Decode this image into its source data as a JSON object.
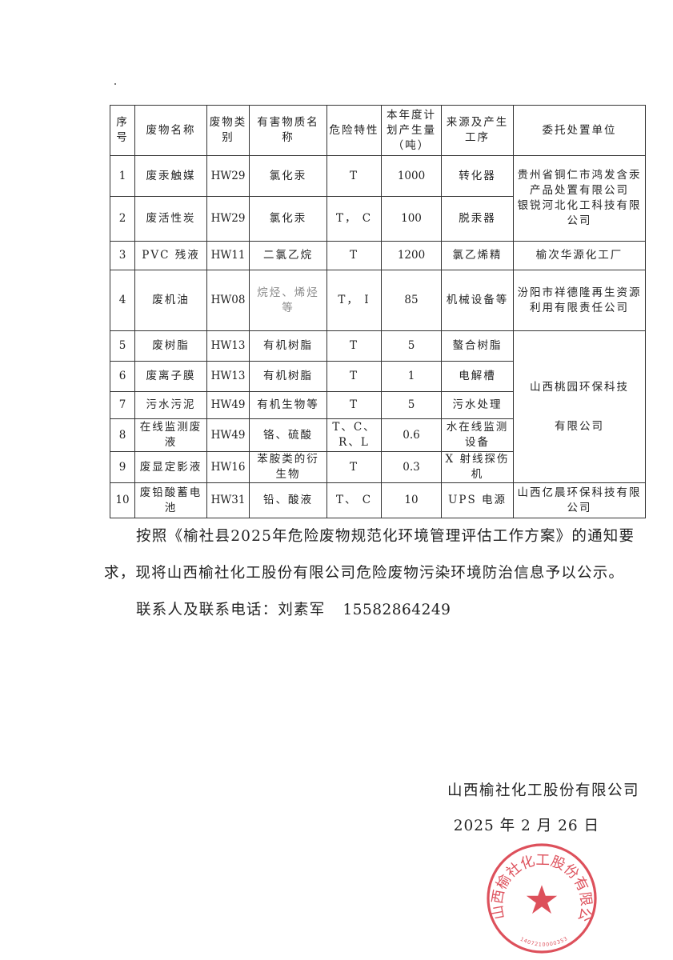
{
  "table": {
    "headers": [
      "序号",
      "废物名称",
      "废物类别",
      "有害物质名称",
      "危险特性",
      "本年度计划产生量（吨）",
      "来源及产生工序",
      "委托处置单位"
    ],
    "rows": [
      {
        "no": "1",
        "name": "废汞触媒",
        "category": "HW29",
        "substance": "氯化汞",
        "hazard": "T",
        "amount": "1000",
        "source": "转化器"
      },
      {
        "no": "2",
        "name": "废活性炭",
        "category": "HW29",
        "substance": "氯化汞",
        "hazard": "T， C",
        "amount": "100",
        "source": "脱汞器"
      },
      {
        "no": "3",
        "name": "PVC 残液",
        "category": "HW11",
        "substance": "二氯乙烷",
        "hazard": "T",
        "amount": "1200",
        "source": "氯乙烯精",
        "disposal": "榆次华源化工厂"
      },
      {
        "no": "4",
        "name": "废机油",
        "category": "HW08",
        "substance": "烷烃、烯烃等",
        "hazard": "T， I",
        "amount": "85",
        "source": "机械设备等",
        "disposal": "汾阳市祥德隆再生资源利用有限责任公司"
      },
      {
        "no": "5",
        "name": "废树脂",
        "category": "HW13",
        "substance": "有机树脂",
        "hazard": "T",
        "amount": "5",
        "source": "螯合树脂"
      },
      {
        "no": "6",
        "name": "废离子膜",
        "category": "HW13",
        "substance": "有机树脂",
        "hazard": "T",
        "amount": "1",
        "source": "电解槽"
      },
      {
        "no": "7",
        "name": "污水污泥",
        "category": "HW49",
        "substance": "有机生物等",
        "hazard": "T",
        "amount": "5",
        "source": "污水处理"
      },
      {
        "no": "8",
        "name": "在线监测废液",
        "category": "HW49",
        "substance": "铬、硫酸",
        "hazard": "T、C、R、L",
        "amount": "0.6",
        "source": "水在线监测设备"
      },
      {
        "no": "9",
        "name": "废显定影液",
        "category": "HW16",
        "substance": "苯胺类的衍生物",
        "hazard": "T",
        "amount": "0.3",
        "source": "X 射线探伤机"
      },
      {
        "no": "10",
        "name": "废铅酸蓄电池",
        "category": "HW31",
        "substance": "铅、酸液",
        "hazard": "T、 C",
        "amount": "10",
        "source": "UPS 电源",
        "disposal": "山西亿晨环保科技有限公司"
      }
    ],
    "disposal_rows_1_2": [
      "贵州省铜仁市鸿发含汞产品处置有限公司",
      "银锐河北化工科技有限公司"
    ],
    "disposal_rows_5_9": [
      "山西桃园环保科技",
      "有限公司"
    ]
  },
  "body": {
    "paragraph": "按照《榆社县2025年危险废物规范化环境管理评估工作方案》的通知要求，现将山西榆社化工股份有限公司危险废物污染环境防治信息予以公示。",
    "contact_label": "联系人及联系电话：刘素军",
    "contact_phone": "15582864249"
  },
  "signature": {
    "company": "山西榆社化工股份有限公司",
    "date": "2025 年 2 月 26 日"
  },
  "stamp": {
    "text": "山西榆社化工股份有限公司",
    "code": "1407210000353",
    "color": "#d8323f"
  }
}
